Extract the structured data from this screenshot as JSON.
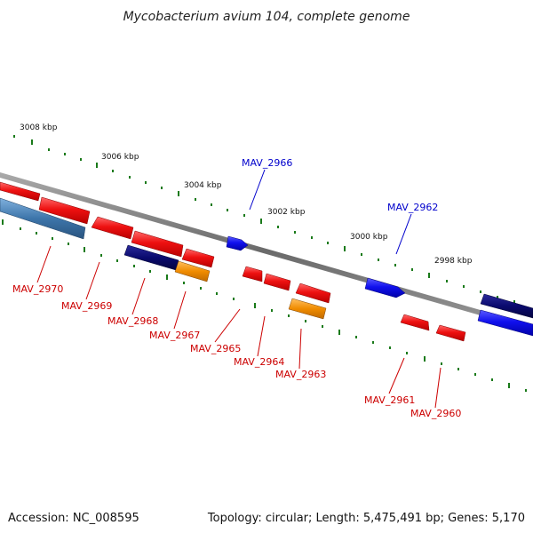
{
  "title": "Mycobacterium avium 104, complete genome",
  "footer": {
    "accession": "Accession: NC_008595",
    "summary": "Topology: circular; Length: 5,475,491 bp; Genes: 5,170"
  },
  "scale_labels": [
    "3008 kbp",
    "3006 kbp",
    "3004 kbp",
    "3002 kbp",
    "3000 kbp",
    "2998 kbp"
  ],
  "genes": {
    "MAV_2970": "MAV_2970",
    "MAV_2969": "MAV_2969",
    "MAV_2968": "MAV_2968",
    "MAV_2967": "MAV_2967",
    "MAV_2966": "MAV_2966",
    "MAV_2965": "MAV_2965",
    "MAV_2964": "MAV_2964",
    "MAV_2963": "MAV_2963",
    "MAV_2962": "MAV_2962",
    "MAV_2961": "MAV_2961",
    "MAV_2960": "MAV_2960"
  },
  "colors": {
    "red_gene": "#ee1111",
    "blue_gene": "#1111ee",
    "navy_gene": "#0a0a6e",
    "steel_gene": "#3d75aa",
    "orange_gene": "#f08c00",
    "tick": "#1a7a1a",
    "backbone": "#777777",
    "red_label": "#cc0000",
    "blue_label": "#0000cc"
  }
}
